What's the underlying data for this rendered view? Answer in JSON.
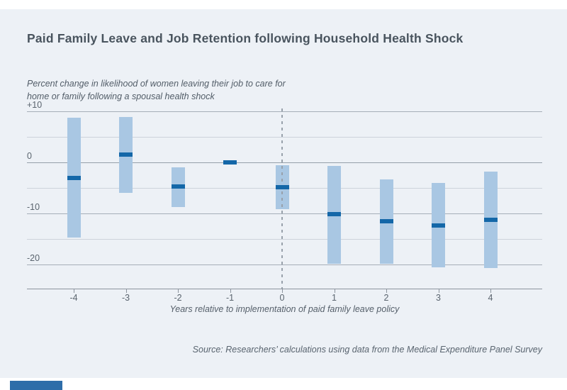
{
  "chart_data": {
    "type": "bar",
    "variant": "event-study: confidence-interval range bars with point-estimate markers",
    "title": "Paid Family Leave and Job Retention following Household Health Shock",
    "subtitle": "Percent change in likelihood of women leaving their job to care for home or family following a spousal health shock",
    "xlabel": "Years relative to implementation of paid family leave policy",
    "source": "Source: Researchers’ calculations using data from the Medical Expenditure Panel Survey",
    "categories": [
      "-4",
      "-3",
      "-2",
      "-1",
      "0",
      "1",
      "2",
      "3",
      "4"
    ],
    "series": [
      {
        "name": "Point estimate",
        "values": [
          -3.1,
          1.5,
          -4.7,
          0,
          -4.8,
          -10.2,
          -11.5,
          -12.3,
          -11.3
        ]
      },
      {
        "name": "CI upper",
        "values": [
          8.8,
          8.9,
          -1.0,
          0.4,
          -0.6,
          -0.7,
          -3.3,
          -4.0,
          -1.8
        ]
      },
      {
        "name": "CI lower",
        "values": [
          -14.7,
          -6.0,
          -8.8,
          -0.4,
          -9.2,
          -19.9,
          -19.9,
          -20.6,
          -20.7
        ]
      }
    ],
    "yticks": [
      {
        "value": 10,
        "label": "+10"
      },
      {
        "value": 5,
        "label": ""
      },
      {
        "value": 0,
        "label": "0"
      },
      {
        "value": -5,
        "label": ""
      },
      {
        "value": -10,
        "label": "-10"
      },
      {
        "value": -15,
        "label": ""
      },
      {
        "value": -20,
        "label": "-20"
      }
    ],
    "ylim": [
      -24.7,
      10
    ],
    "reference_line_x": "0",
    "grid": "horizontal lines every 5 units, labels every 10",
    "legend": "none"
  },
  "colors": {
    "panel_bg": "#edf1f6",
    "ci_bar": "#a9c7e3",
    "point_estimate": "#1467a8",
    "grid_minor": "#cdd3db",
    "grid_major": "#a6aeb8",
    "zero_line": "#959fa9",
    "axis_line": "#8c949e",
    "dashed_line": "#98a1ab",
    "title_text": "#49545e",
    "muted_text": "#59646f",
    "footer_bar": "#2e6da9"
  }
}
